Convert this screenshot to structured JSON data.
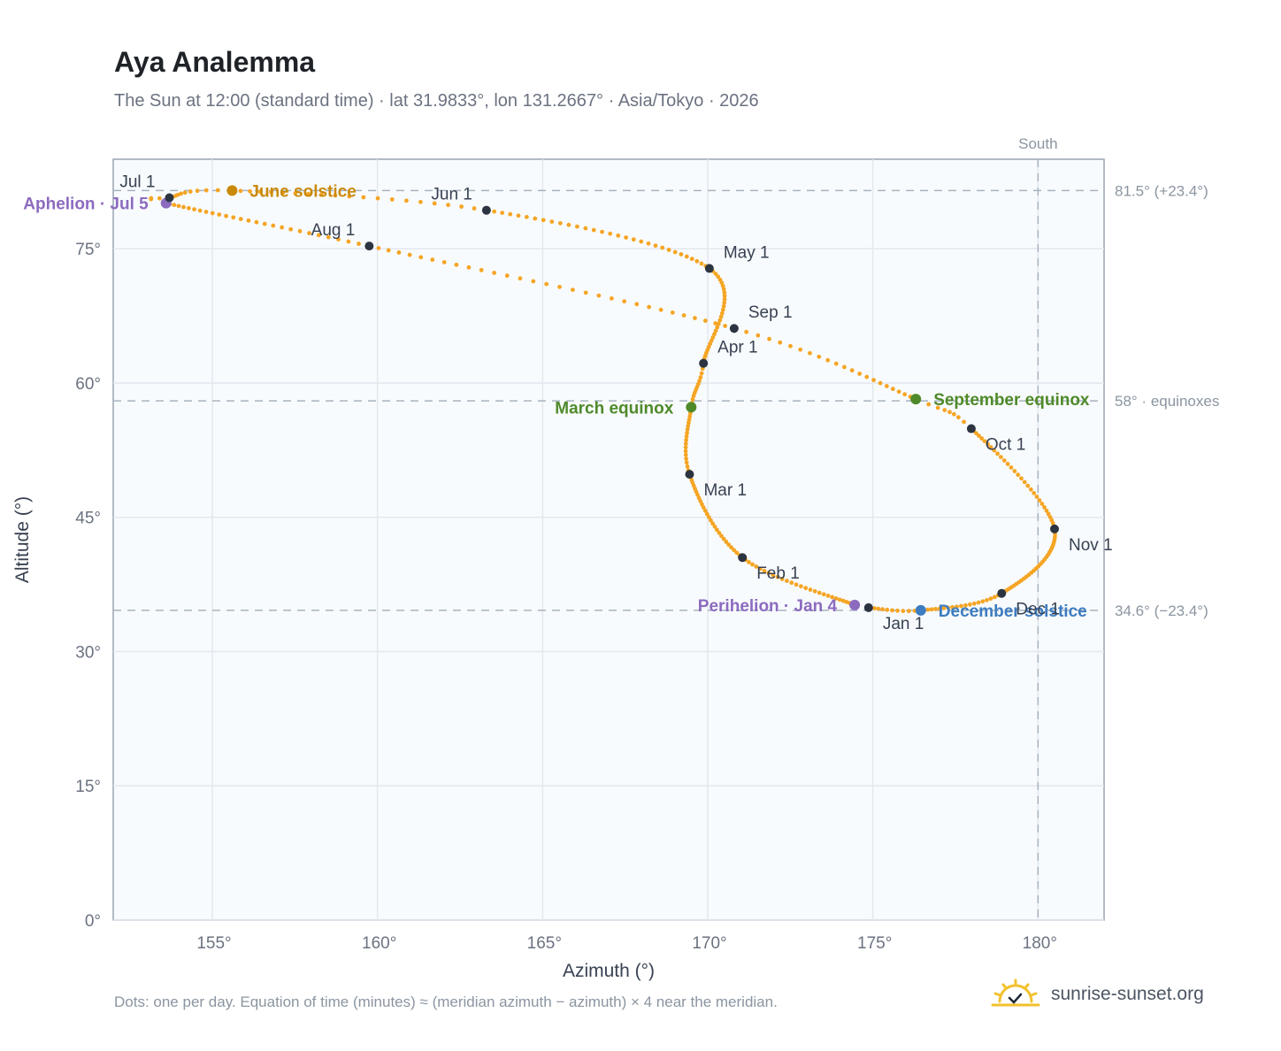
{
  "chart_data": {
    "type": "scatter",
    "title": "Aya Analemma",
    "subtitle": "The Sun at 12:00 (standard time) · lat 31.9833°, lon 131.2667° · Asia/Tokyo · 2026",
    "xlabel": "Azimuth (°)",
    "ylabel": "Altitude (°)",
    "xlim": [
      152,
      182
    ],
    "ylim": [
      0,
      85
    ],
    "x_ticks": [
      155,
      160,
      165,
      170,
      175,
      180
    ],
    "x_tick_labels": [
      "155°",
      "160°",
      "165°",
      "170°",
      "175°",
      "180°"
    ],
    "y_ticks": [
      0,
      15,
      30,
      45,
      60,
      75
    ],
    "y_tick_labels": [
      "0°",
      "15°",
      "30°",
      "45°",
      "60°",
      "75°"
    ],
    "grid": true,
    "series_color": "#f5a524",
    "path_anchors": [
      {
        "day": 0,
        "az": 174.87,
        "alt": 34.9
      },
      {
        "day": 3,
        "az": 174.45,
        "alt": 35.2
      },
      {
        "day": 31,
        "az": 171.05,
        "alt": 40.5
      },
      {
        "day": 59,
        "az": 169.45,
        "alt": 49.8
      },
      {
        "day": 78,
        "az": 169.5,
        "alt": 57.3
      },
      {
        "day": 90,
        "az": 169.87,
        "alt": 62.2
      },
      {
        "day": 120,
        "az": 170.05,
        "alt": 72.8
      },
      {
        "day": 151,
        "az": 163.3,
        "alt": 79.3
      },
      {
        "day": 171,
        "az": 155.6,
        "alt": 81.5
      },
      {
        "day": 181,
        "az": 153.7,
        "alt": 80.7
      },
      {
        "day": 185,
        "az": 153.6,
        "alt": 80.1
      },
      {
        "day": 212,
        "az": 159.75,
        "alt": 75.3
      },
      {
        "day": 243,
        "az": 170.8,
        "alt": 66.1
      },
      {
        "day": 265,
        "az": 176.3,
        "alt": 58.2
      },
      {
        "day": 273,
        "az": 177.98,
        "alt": 54.9
      },
      {
        "day": 304,
        "az": 180.5,
        "alt": 43.7
      },
      {
        "day": 334,
        "az": 178.9,
        "alt": 36.5
      },
      {
        "day": 354,
        "az": 176.45,
        "alt": 34.6
      },
      {
        "day": 365,
        "az": 174.87,
        "alt": 34.9
      }
    ],
    "months": [
      {
        "label": "Jan 1",
        "az": 174.87,
        "alt": 34.9,
        "pos": "below-right"
      },
      {
        "label": "Feb 1",
        "az": 171.05,
        "alt": 40.5,
        "pos": "below-right"
      },
      {
        "label": "Mar 1",
        "az": 169.45,
        "alt": 49.8,
        "pos": "below-right"
      },
      {
        "label": "Apr 1",
        "az": 169.87,
        "alt": 62.2,
        "pos": "above-right"
      },
      {
        "label": "May 1",
        "az": 170.05,
        "alt": 72.8,
        "pos": "above-right"
      },
      {
        "label": "Jun 1",
        "az": 163.3,
        "alt": 79.3,
        "pos": "above-left"
      },
      {
        "label": "Jul 1",
        "az": 153.7,
        "alt": 80.7,
        "pos": "above-left"
      },
      {
        "label": "Aug 1",
        "az": 159.75,
        "alt": 75.3,
        "pos": "above-left"
      },
      {
        "label": "Sep 1",
        "az": 170.8,
        "alt": 66.1,
        "pos": "above-right"
      },
      {
        "label": "Oct 1",
        "az": 177.98,
        "alt": 54.9,
        "pos": "below-right"
      },
      {
        "label": "Nov 1",
        "az": 180.5,
        "alt": 43.7,
        "pos": "below-right"
      },
      {
        "label": "Dec 1",
        "az": 178.9,
        "alt": 36.5,
        "pos": "below-right"
      }
    ],
    "events": [
      {
        "label": "June solstice",
        "az": 155.6,
        "alt": 81.5,
        "color": "#c98a0c",
        "side": "right"
      },
      {
        "label": "Aphelion · Jul 5",
        "az": 153.6,
        "alt": 80.1,
        "color": "#8c6bbf",
        "side": "left"
      },
      {
        "label": "March equinox",
        "az": 169.5,
        "alt": 57.3,
        "color": "#4f8a2a",
        "side": "left"
      },
      {
        "label": "September equinox",
        "az": 176.3,
        "alt": 58.2,
        "color": "#4f8a2a",
        "side": "right"
      },
      {
        "label": "Perihelion · Jan 4",
        "az": 174.45,
        "alt": 35.2,
        "color": "#8c6bbf",
        "side": "left"
      },
      {
        "label": "December solstice",
        "az": 176.45,
        "alt": 34.6,
        "color": "#3d7cc0",
        "side": "right"
      }
    ],
    "reference_lines": [
      {
        "alt": 81.5,
        "label": "81.5° (+23.4°)"
      },
      {
        "alt": 58,
        "label": "58° · equinoxes"
      },
      {
        "alt": 34.6,
        "label": "34.6° (−23.4°)"
      }
    ],
    "meridian": {
      "az": 180,
      "label": "South"
    }
  },
  "footnote": "Dots: one per day. Equation of time (minutes) ≈ (meridian azimuth − azimuth) × 4 near the meridian.",
  "brand": {
    "name": "sunrise-sunset.org",
    "icon": "sun-check-icon",
    "color": "#f2c12e"
  }
}
